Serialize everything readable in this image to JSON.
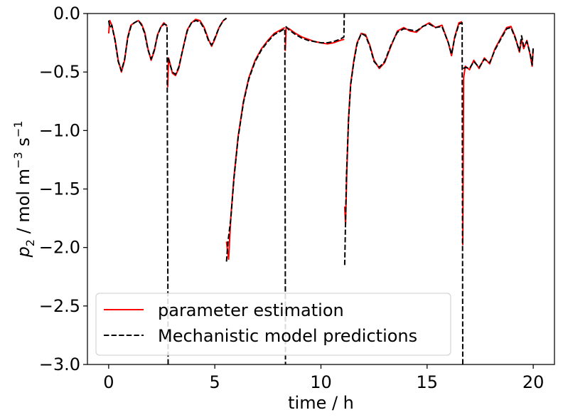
{
  "chart_data": {
    "type": "line",
    "title": "",
    "xlabel": "time / h",
    "ylabel_parts": {
      "symbol": "p",
      "subscript": "2",
      "unit_prefix": " /  mol m",
      "exp1": "−3",
      "unit_mid": " s",
      "exp2": "−1"
    },
    "xlim": [
      -1,
      21
    ],
    "ylim": [
      -3.0,
      0.0
    ],
    "xticks": [
      0,
      5,
      10,
      15,
      20
    ],
    "xtick_labels": [
      "0",
      "5",
      "10",
      "15",
      "20"
    ],
    "yticks": [
      0.0,
      -0.5,
      -1.0,
      -1.5,
      -2.0,
      -2.5,
      -3.0
    ],
    "ytick_labels": [
      "0.0",
      "−0.5",
      "−1.0",
      "−1.5",
      "−2.0",
      "−2.5",
      "−3.0"
    ],
    "legend_position": "lower-left",
    "series": [
      {
        "name": "parameter estimation",
        "style": "solid",
        "color": "#ff0000",
        "segments": [
          [
            [
              0.0,
              -0.17
            ],
            [
              0.05,
              -0.06
            ],
            [
              0.15,
              -0.1
            ],
            [
              0.3,
              -0.22
            ],
            [
              0.45,
              -0.4
            ],
            [
              0.6,
              -0.5
            ],
            [
              0.75,
              -0.4
            ],
            [
              0.9,
              -0.2
            ],
            [
              1.05,
              -0.1
            ],
            [
              1.2,
              -0.08
            ],
            [
              1.4,
              -0.06
            ],
            [
              1.55,
              -0.09
            ],
            [
              1.7,
              -0.16
            ],
            [
              1.85,
              -0.3
            ],
            [
              2.0,
              -0.4
            ],
            [
              2.15,
              -0.32
            ],
            [
              2.3,
              -0.18
            ],
            [
              2.45,
              -0.12
            ],
            [
              2.6,
              -0.08
            ],
            [
              2.75,
              -0.11
            ]
          ],
          [
            [
              2.78,
              -0.63
            ],
            [
              2.82,
              -0.38
            ],
            [
              2.88,
              -0.42
            ],
            [
              3.0,
              -0.51
            ],
            [
              3.15,
              -0.53
            ],
            [
              3.3,
              -0.47
            ],
            [
              3.5,
              -0.3
            ],
            [
              3.7,
              -0.14
            ],
            [
              3.9,
              -0.08
            ],
            [
              4.1,
              -0.05
            ],
            [
              4.3,
              -0.06
            ],
            [
              4.5,
              -0.12
            ],
            [
              4.7,
              -0.22
            ],
            [
              4.85,
              -0.28
            ],
            [
              5.0,
              -0.22
            ],
            [
              5.2,
              -0.12
            ],
            [
              5.4,
              -0.06
            ],
            [
              5.55,
              -0.04
            ]
          ],
          [
            [
              5.55,
              -1.95
            ],
            [
              5.65,
              -2.1
            ],
            [
              5.75,
              -1.75
            ],
            [
              5.9,
              -1.4
            ],
            [
              6.1,
              -1.05
            ],
            [
              6.35,
              -0.75
            ],
            [
              6.6,
              -0.55
            ],
            [
              6.9,
              -0.4
            ],
            [
              7.2,
              -0.3
            ],
            [
              7.5,
              -0.23
            ],
            [
              7.8,
              -0.17
            ],
            [
              8.1,
              -0.14
            ],
            [
              8.3,
              -0.12
            ]
          ],
          [
            [
              8.32,
              -0.32
            ],
            [
              8.36,
              -0.12
            ],
            [
              8.5,
              -0.13
            ],
            [
              8.8,
              -0.17
            ],
            [
              9.1,
              -0.2
            ],
            [
              9.4,
              -0.22
            ],
            [
              9.7,
              -0.24
            ],
            [
              10.0,
              -0.25
            ],
            [
              10.3,
              -0.26
            ],
            [
              10.6,
              -0.25
            ],
            [
              10.9,
              -0.23
            ],
            [
              11.1,
              -0.22
            ]
          ],
          [
            [
              11.12,
              -1.65
            ],
            [
              11.16,
              -1.8
            ],
            [
              11.22,
              -1.35
            ],
            [
              11.3,
              -0.9
            ],
            [
              11.4,
              -0.6
            ],
            [
              11.55,
              -0.4
            ],
            [
              11.7,
              -0.25
            ],
            [
              11.9,
              -0.17
            ],
            [
              12.1,
              -0.18
            ],
            [
              12.3,
              -0.27
            ],
            [
              12.5,
              -0.4
            ],
            [
              12.75,
              -0.47
            ],
            [
              13.0,
              -0.42
            ],
            [
              13.3,
              -0.28
            ],
            [
              13.6,
              -0.15
            ],
            [
              13.9,
              -0.12
            ],
            [
              14.2,
              -0.15
            ],
            [
              14.5,
              -0.16
            ],
            [
              14.8,
              -0.11
            ],
            [
              15.1,
              -0.08
            ],
            [
              15.4,
              -0.12
            ],
            [
              15.7,
              -0.1
            ],
            [
              16.0,
              -0.25
            ],
            [
              16.15,
              -0.36
            ],
            [
              16.3,
              -0.2
            ],
            [
              16.5,
              -0.08
            ],
            [
              16.65,
              -0.07
            ]
          ],
          [
            [
              16.68,
              -1.98
            ],
            [
              16.72,
              -0.55
            ],
            [
              16.8,
              -0.45
            ],
            [
              17.0,
              -0.48
            ],
            [
              17.2,
              -0.4
            ],
            [
              17.45,
              -0.47
            ],
            [
              17.7,
              -0.38
            ],
            [
              17.95,
              -0.43
            ],
            [
              18.2,
              -0.3
            ],
            [
              18.5,
              -0.2
            ],
            [
              18.75,
              -0.12
            ],
            [
              18.95,
              -0.11
            ],
            [
              19.15,
              -0.2
            ],
            [
              19.35,
              -0.33
            ],
            [
              19.45,
              -0.22
            ],
            [
              19.55,
              -0.3
            ],
            [
              19.7,
              -0.23
            ],
            [
              19.85,
              -0.35
            ],
            [
              19.95,
              -0.45
            ],
            [
              20.0,
              -0.3
            ]
          ]
        ]
      },
      {
        "name": "Mechanistic model predictions",
        "style": "dashed",
        "color": "#000000",
        "segments": [
          [
            [
              0.0,
              -0.06
            ],
            [
              0.05,
              -0.12
            ],
            [
              0.15,
              -0.1
            ],
            [
              0.3,
              -0.23
            ],
            [
              0.45,
              -0.41
            ],
            [
              0.6,
              -0.49
            ],
            [
              0.75,
              -0.39
            ],
            [
              0.9,
              -0.21
            ],
            [
              1.05,
              -0.11
            ],
            [
              1.2,
              -0.08
            ],
            [
              1.4,
              -0.06
            ],
            [
              1.55,
              -0.1
            ],
            [
              1.7,
              -0.17
            ],
            [
              1.85,
              -0.31
            ],
            [
              2.0,
              -0.39
            ],
            [
              2.15,
              -0.31
            ],
            [
              2.3,
              -0.19
            ],
            [
              2.45,
              -0.12
            ],
            [
              2.6,
              -0.09
            ],
            [
              2.75,
              -0.1
            ],
            [
              2.8,
              -3.0
            ]
          ],
          [
            [
              2.8,
              -0.38
            ],
            [
              2.88,
              -0.43
            ],
            [
              3.0,
              -0.5
            ],
            [
              3.15,
              -0.52
            ],
            [
              3.3,
              -0.46
            ],
            [
              3.5,
              -0.3
            ],
            [
              3.7,
              -0.15
            ],
            [
              3.9,
              -0.08
            ],
            [
              4.1,
              -0.06
            ],
            [
              4.3,
              -0.07
            ],
            [
              4.5,
              -0.13
            ],
            [
              4.7,
              -0.23
            ],
            [
              4.85,
              -0.27
            ],
            [
              5.0,
              -0.21
            ],
            [
              5.2,
              -0.12
            ],
            [
              5.4,
              -0.06
            ],
            [
              5.55,
              -0.04
            ]
          ],
          [
            [
              5.55,
              -2.12
            ],
            [
              5.62,
              -1.95
            ],
            [
              5.75,
              -1.76
            ],
            [
              5.9,
              -1.41
            ],
            [
              6.1,
              -1.06
            ],
            [
              6.35,
              -0.76
            ],
            [
              6.6,
              -0.56
            ],
            [
              6.9,
              -0.41
            ],
            [
              7.2,
              -0.31
            ],
            [
              7.5,
              -0.24
            ],
            [
              7.8,
              -0.18
            ],
            [
              8.1,
              -0.15
            ],
            [
              8.3,
              -0.13
            ],
            [
              8.33,
              -3.0
            ]
          ],
          [
            [
              8.34,
              -0.11
            ],
            [
              8.5,
              -0.14
            ],
            [
              8.8,
              -0.18
            ],
            [
              9.1,
              -0.21
            ],
            [
              9.4,
              -0.23
            ],
            [
              9.7,
              -0.24
            ],
            [
              10.0,
              -0.25
            ],
            [
              10.3,
              -0.25
            ],
            [
              10.6,
              -0.24
            ],
            [
              10.9,
              -0.22
            ],
            [
              11.08,
              -0.2
            ],
            [
              11.1,
              0.0
            ]
          ],
          [
            [
              11.12,
              -2.15
            ],
            [
              11.2,
              -1.4
            ],
            [
              11.3,
              -0.91
            ],
            [
              11.4,
              -0.61
            ],
            [
              11.55,
              -0.41
            ],
            [
              11.7,
              -0.26
            ],
            [
              11.9,
              -0.17
            ],
            [
              12.1,
              -0.19
            ],
            [
              12.3,
              -0.28
            ],
            [
              12.5,
              -0.41
            ],
            [
              12.75,
              -0.46
            ],
            [
              13.0,
              -0.41
            ],
            [
              13.3,
              -0.27
            ],
            [
              13.6,
              -0.16
            ],
            [
              13.9,
              -0.13
            ],
            [
              14.2,
              -0.14
            ],
            [
              14.5,
              -0.15
            ],
            [
              14.8,
              -0.11
            ],
            [
              15.1,
              -0.09
            ],
            [
              15.4,
              -0.12
            ],
            [
              15.7,
              -0.11
            ],
            [
              16.0,
              -0.25
            ],
            [
              16.15,
              -0.35
            ],
            [
              16.3,
              -0.21
            ],
            [
              16.5,
              -0.09
            ],
            [
              16.65,
              -0.08
            ],
            [
              16.68,
              -3.0
            ]
          ],
          [
            [
              16.7,
              -0.47
            ],
            [
              16.8,
              -0.46
            ],
            [
              17.0,
              -0.47
            ],
            [
              17.2,
              -0.41
            ],
            [
              17.45,
              -0.46
            ],
            [
              17.7,
              -0.39
            ],
            [
              17.95,
              -0.42
            ],
            [
              18.2,
              -0.31
            ],
            [
              18.5,
              -0.21
            ],
            [
              18.75,
              -0.13
            ],
            [
              18.95,
              -0.12
            ],
            [
              19.15,
              -0.21
            ],
            [
              19.35,
              -0.32
            ],
            [
              19.45,
              -0.19
            ],
            [
              19.55,
              -0.28
            ],
            [
              19.7,
              -0.24
            ],
            [
              19.85,
              -0.34
            ],
            [
              19.95,
              -0.44
            ],
            [
              20.0,
              -0.28
            ]
          ]
        ]
      }
    ]
  }
}
